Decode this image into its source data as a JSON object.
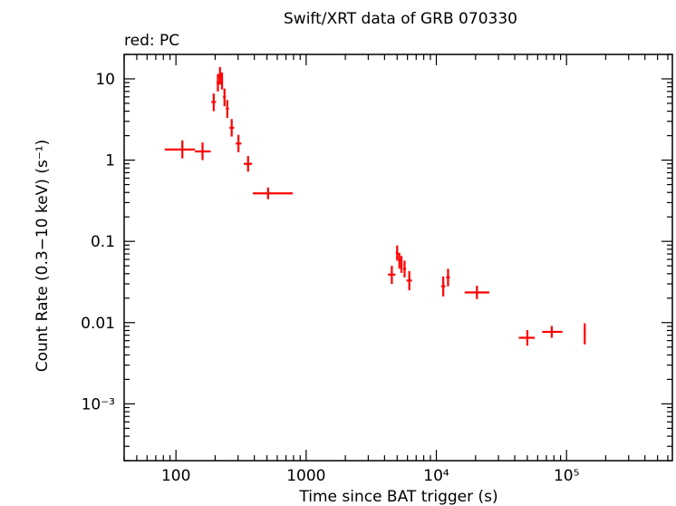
{
  "chart_data": {
    "type": "scatter",
    "title": "Swift/XRT data of GRB 070330",
    "subtitle": "red: PC",
    "xlabel": "Time since BAT trigger (s)",
    "ylabel": "Count Rate (0.3−10 keV) (s⁻¹)",
    "xscale": "log",
    "yscale": "log",
    "xlim": [
      40,
      650000
    ],
    "ylim": [
      0.0002,
      20
    ],
    "x_ticks": [
      {
        "value": 100,
        "label": "100"
      },
      {
        "value": 1000,
        "label": "1000"
      },
      {
        "value": 10000,
        "label": "10⁴"
      },
      {
        "value": 100000,
        "label": "10⁵"
      }
    ],
    "y_ticks": [
      {
        "value": 10,
        "label": "10"
      },
      {
        "value": 1,
        "label": "1"
      },
      {
        "value": 0.1,
        "label": "0.1"
      },
      {
        "value": 0.01,
        "label": "0.01"
      },
      {
        "value": 0.001,
        "label": "10⁻³"
      }
    ],
    "grid": false,
    "series": [
      {
        "name": "PC",
        "color": "#ff0000",
        "points": [
          {
            "x": 112,
            "xlo": 82,
            "xhi": 140,
            "y": 1.35,
            "ylo": 1.05,
            "yhi": 1.75
          },
          {
            "x": 160,
            "xlo": 140,
            "xhi": 185,
            "y": 1.28,
            "ylo": 1.0,
            "yhi": 1.65
          },
          {
            "x": 195,
            "xlo": 187,
            "xhi": 203,
            "y": 5.2,
            "ylo": 4.0,
            "yhi": 6.6
          },
          {
            "x": 210,
            "xlo": 205,
            "xhi": 215,
            "y": 9.0,
            "ylo": 7.0,
            "yhi": 11.5
          },
          {
            "x": 218,
            "xlo": 214,
            "xhi": 222,
            "y": 11.0,
            "ylo": 8.5,
            "yhi": 14.0
          },
          {
            "x": 226,
            "xlo": 222,
            "xhi": 230,
            "y": 9.5,
            "ylo": 7.4,
            "yhi": 12.0
          },
          {
            "x": 236,
            "xlo": 230,
            "xhi": 242,
            "y": 6.0,
            "ylo": 4.6,
            "yhi": 7.6
          },
          {
            "x": 248,
            "xlo": 242,
            "xhi": 255,
            "y": 4.3,
            "ylo": 3.3,
            "yhi": 5.5
          },
          {
            "x": 268,
            "xlo": 258,
            "xhi": 280,
            "y": 2.5,
            "ylo": 1.95,
            "yhi": 3.2
          },
          {
            "x": 302,
            "xlo": 288,
            "xhi": 318,
            "y": 1.6,
            "ylo": 1.25,
            "yhi": 2.05
          },
          {
            "x": 358,
            "xlo": 332,
            "xhi": 385,
            "y": 0.9,
            "ylo": 0.72,
            "yhi": 1.12
          },
          {
            "x": 510,
            "xlo": 390,
            "xhi": 790,
            "y": 0.39,
            "ylo": 0.33,
            "yhi": 0.46
          },
          {
            "x": 4550,
            "xlo": 4250,
            "xhi": 4850,
            "y": 0.039,
            "ylo": 0.03,
            "yhi": 0.05
          },
          {
            "x": 5000,
            "xlo": 4880,
            "xhi": 5120,
            "y": 0.072,
            "ylo": 0.058,
            "yhi": 0.089
          },
          {
            "x": 5200,
            "xlo": 5100,
            "xhi": 5300,
            "y": 0.058,
            "ylo": 0.046,
            "yhi": 0.072
          },
          {
            "x": 5400,
            "xlo": 5300,
            "xhi": 5500,
            "y": 0.052,
            "ylo": 0.041,
            "yhi": 0.066
          },
          {
            "x": 5700,
            "xlo": 5550,
            "xhi": 5850,
            "y": 0.046,
            "ylo": 0.036,
            "yhi": 0.058
          },
          {
            "x": 6200,
            "xlo": 5900,
            "xhi": 6500,
            "y": 0.033,
            "ylo": 0.025,
            "yhi": 0.043
          },
          {
            "x": 11300,
            "xlo": 10900,
            "xhi": 11700,
            "y": 0.028,
            "ylo": 0.021,
            "yhi": 0.037
          },
          {
            "x": 12300,
            "xlo": 11900,
            "xhi": 12700,
            "y": 0.036,
            "ylo": 0.028,
            "yhi": 0.046
          },
          {
            "x": 20500,
            "xlo": 16500,
            "xhi": 25500,
            "y": 0.0235,
            "ylo": 0.0195,
            "yhi": 0.0285
          },
          {
            "x": 50000,
            "xlo": 43000,
            "xhi": 57000,
            "y": 0.0065,
            "ylo": 0.0052,
            "yhi": 0.0081
          },
          {
            "x": 77000,
            "xlo": 65000,
            "xhi": 93000,
            "y": 0.0077,
            "ylo": 0.0065,
            "yhi": 0.0091
          },
          {
            "x": 138000,
            "xlo": 136000,
            "xhi": 140000,
            "y": 0.0073,
            "ylo": 0.0054,
            "yhi": 0.0098
          }
        ]
      }
    ]
  }
}
